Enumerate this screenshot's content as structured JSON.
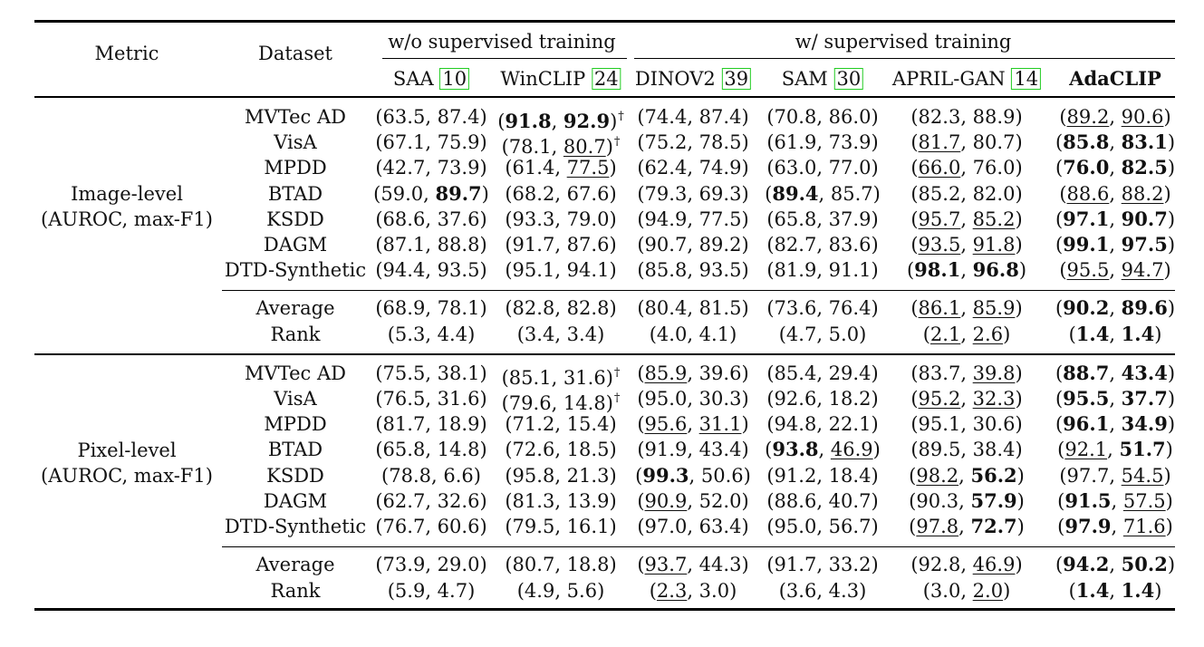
{
  "header": {
    "metric": "Metric",
    "dataset": "Dataset",
    "group_unsup": "w/o supervised training",
    "group_sup": "w/ supervised training",
    "methods": [
      {
        "name": "SAA",
        "cite": "10"
      },
      {
        "name": "WinCLIP",
        "cite": "24"
      },
      {
        "name": "DINOV2",
        "cite": "39"
      },
      {
        "name": "SAM",
        "cite": "30"
      },
      {
        "name": "APRIL-GAN",
        "cite": "14"
      },
      {
        "name": "AdaCLIP",
        "cite": ""
      }
    ]
  },
  "image_level": {
    "label_1": "Image-level",
    "label_2": "(AUROC, max-F1)",
    "datasets": [
      "MVTec AD",
      "VisA",
      "MPDD",
      "BTAD",
      "KSDD",
      "DAGM",
      "DTD-Synthetic"
    ],
    "rows": [
      [
        {
          "a": "63.5",
          "b": "87.4"
        },
        {
          "a": "91.8",
          "b": "92.9",
          "ba": true,
          "bb": true,
          "dag": true
        },
        {
          "a": "74.4",
          "b": "87.4"
        },
        {
          "a": "70.8",
          "b": "86.0"
        },
        {
          "a": "82.3",
          "b": "88.9"
        },
        {
          "a": "89.2",
          "b": "90.6",
          "ua": true,
          "ub": true
        }
      ],
      [
        {
          "a": "67.1",
          "b": "75.9"
        },
        {
          "a": "78.1",
          "b": "80.7",
          "ub": true,
          "dag": true
        },
        {
          "a": "75.2",
          "b": "78.5"
        },
        {
          "a": "61.9",
          "b": "73.9"
        },
        {
          "a": "81.7",
          "b": "80.7",
          "ua": true
        },
        {
          "a": "85.8",
          "b": "83.1",
          "ba": true,
          "bb": true
        }
      ],
      [
        {
          "a": "42.7",
          "b": "73.9"
        },
        {
          "a": "61.4",
          "b": "77.5",
          "ub": true
        },
        {
          "a": "62.4",
          "b": "74.9"
        },
        {
          "a": "63.0",
          "b": "77.0"
        },
        {
          "a": "66.0",
          "b": "76.0",
          "ua": true
        },
        {
          "a": "76.0",
          "b": "82.5",
          "ba": true,
          "bb": true
        }
      ],
      [
        {
          "a": "59.0",
          "b": "89.7",
          "bb": true
        },
        {
          "a": "68.2",
          "b": "67.6"
        },
        {
          "a": "79.3",
          "b": "69.3"
        },
        {
          "a": "89.4",
          "b": "85.7",
          "ba": true
        },
        {
          "a": "85.2",
          "b": "82.0"
        },
        {
          "a": "88.6",
          "b": "88.2",
          "ua": true,
          "ub": true
        }
      ],
      [
        {
          "a": "68.6",
          "b": "37.6"
        },
        {
          "a": "93.3",
          "b": "79.0"
        },
        {
          "a": "94.9",
          "b": "77.5"
        },
        {
          "a": "65.8",
          "b": "37.9"
        },
        {
          "a": "95.7",
          "b": "85.2",
          "ua": true,
          "ub": true
        },
        {
          "a": "97.1",
          "b": "90.7",
          "ba": true,
          "bb": true
        }
      ],
      [
        {
          "a": "87.1",
          "b": "88.8"
        },
        {
          "a": "91.7",
          "b": "87.6"
        },
        {
          "a": "90.7",
          "b": "89.2"
        },
        {
          "a": "82.7",
          "b": "83.6"
        },
        {
          "a": "93.5",
          "b": "91.8",
          "ua": true,
          "ub": true
        },
        {
          "a": "99.1",
          "b": "97.5",
          "ba": true,
          "bb": true
        }
      ],
      [
        {
          "a": "94.4",
          "b": "93.5"
        },
        {
          "a": "95.1",
          "b": "94.1"
        },
        {
          "a": "85.8",
          "b": "93.5"
        },
        {
          "a": "81.9",
          "b": "91.1"
        },
        {
          "a": "98.1",
          "b": "96.8",
          "ba": true,
          "bb": true
        },
        {
          "a": "95.5",
          "b": "94.7",
          "ua": true,
          "ub": true
        }
      ]
    ],
    "summary_labels": [
      "Average",
      "Rank"
    ],
    "summary": [
      [
        {
          "a": "68.9",
          "b": "78.1"
        },
        {
          "a": "82.8",
          "b": "82.8"
        },
        {
          "a": "80.4",
          "b": "81.5"
        },
        {
          "a": "73.6",
          "b": "76.4"
        },
        {
          "a": "86.1",
          "b": "85.9",
          "ua": true,
          "ub": true
        },
        {
          "a": "90.2",
          "b": "89.6",
          "ba": true,
          "bb": true
        }
      ],
      [
        {
          "a": "5.3",
          "b": "4.4"
        },
        {
          "a": "3.4",
          "b": "3.4"
        },
        {
          "a": "4.0",
          "b": "4.1"
        },
        {
          "a": "4.7",
          "b": "5.0"
        },
        {
          "a": "2.1",
          "b": "2.6",
          "ua": true,
          "ub": true
        },
        {
          "a": "1.4",
          "b": "1.4",
          "ba": true,
          "bb": true
        }
      ]
    ]
  },
  "pixel_level": {
    "label_1": "Pixel-level",
    "label_2": "(AUROC, max-F1)",
    "datasets": [
      "MVTec AD",
      "VisA",
      "MPDD",
      "BTAD",
      "KSDD",
      "DAGM",
      "DTD-Synthetic"
    ],
    "rows": [
      [
        {
          "a": "75.5",
          "b": "38.1"
        },
        {
          "a": "85.1",
          "b": "31.6",
          "dag": true
        },
        {
          "a": "85.9",
          "b": "39.6",
          "ua": true
        },
        {
          "a": "85.4",
          "b": "29.4"
        },
        {
          "a": "83.7",
          "b": "39.8",
          "ub": true
        },
        {
          "a": "88.7",
          "b": "43.4",
          "ba": true,
          "bb": true
        }
      ],
      [
        {
          "a": "76.5",
          "b": "31.6"
        },
        {
          "a": "79.6",
          "b": "14.8",
          "dag": true
        },
        {
          "a": "95.0",
          "b": "30.3"
        },
        {
          "a": "92.6",
          "b": "18.2"
        },
        {
          "a": "95.2",
          "b": "32.3",
          "ua": true,
          "ub": true
        },
        {
          "a": "95.5",
          "b": "37.7",
          "ba": true,
          "bb": true
        }
      ],
      [
        {
          "a": "81.7",
          "b": "18.9"
        },
        {
          "a": "71.2",
          "b": "15.4"
        },
        {
          "a": "95.6",
          "b": "31.1",
          "ua": true,
          "ub": true
        },
        {
          "a": "94.8",
          "b": "22.1"
        },
        {
          "a": "95.1",
          "b": "30.6"
        },
        {
          "a": "96.1",
          "b": "34.9",
          "ba": true,
          "bb": true
        }
      ],
      [
        {
          "a": "65.8",
          "b": "14.8"
        },
        {
          "a": "72.6",
          "b": "18.5"
        },
        {
          "a": "91.9",
          "b": "43.4"
        },
        {
          "a": "93.8",
          "b": "46.9",
          "ba": true,
          "ub": true
        },
        {
          "a": "89.5",
          "b": "38.4"
        },
        {
          "a": "92.1",
          "b": "51.7",
          "ua": true,
          "bb": true
        }
      ],
      [
        {
          "a": "78.8",
          "b": "6.6"
        },
        {
          "a": "95.8",
          "b": "21.3"
        },
        {
          "a": "99.3",
          "b": "50.6",
          "ba": true
        },
        {
          "a": "91.2",
          "b": "18.4"
        },
        {
          "a": "98.2",
          "b": "56.2",
          "ua": true,
          "bb": true
        },
        {
          "a": "97.7",
          "b": "54.5",
          "ub": true
        }
      ],
      [
        {
          "a": "62.7",
          "b": "32.6"
        },
        {
          "a": "81.3",
          "b": "13.9"
        },
        {
          "a": "90.9",
          "b": "52.0",
          "ua": true
        },
        {
          "a": "88.6",
          "b": "40.7"
        },
        {
          "a": "90.3",
          "b": "57.9",
          "bb": true
        },
        {
          "a": "91.5",
          "b": "57.5",
          "ba": true,
          "ub": true
        }
      ],
      [
        {
          "a": "76.7",
          "b": "60.6"
        },
        {
          "a": "79.5",
          "b": "16.1"
        },
        {
          "a": "97.0",
          "b": "63.4"
        },
        {
          "a": "95.0",
          "b": "56.7"
        },
        {
          "a": "97.8",
          "b": "72.7",
          "ua": true,
          "bb": true
        },
        {
          "a": "97.9",
          "b": "71.6",
          "ba": true,
          "ub": true
        }
      ]
    ],
    "summary_labels": [
      "Average",
      "Rank"
    ],
    "summary": [
      [
        {
          "a": "73.9",
          "b": "29.0"
        },
        {
          "a": "80.7",
          "b": "18.8"
        },
        {
          "a": "93.7",
          "b": "44.3",
          "ua": true
        },
        {
          "a": "91.7",
          "b": "33.2"
        },
        {
          "a": "92.8",
          "b": "46.9",
          "ub": true
        },
        {
          "a": "94.2",
          "b": "50.2",
          "ba": true,
          "bb": true
        }
      ],
      [
        {
          "a": "5.9",
          "b": "4.7"
        },
        {
          "a": "4.9",
          "b": "5.6"
        },
        {
          "a": "2.3",
          "b": "3.0",
          "ua": true
        },
        {
          "a": "3.6",
          "b": "4.3"
        },
        {
          "a": "3.0",
          "b": "2.0",
          "ub": true
        },
        {
          "a": "1.4",
          "b": "1.4",
          "ba": true,
          "bb": true
        }
      ]
    ]
  }
}
